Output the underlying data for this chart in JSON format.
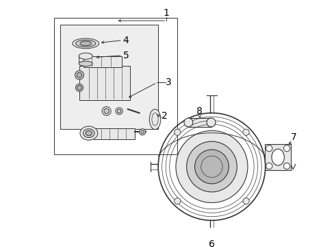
{
  "bg_color": "#ffffff",
  "line_color": "#333333",
  "fill_light": "#e8e8e8",
  "fill_mid": "#d0d0d0",
  "fill_dark": "#b8b8b8",
  "fill_box": "#eeeeee",
  "label_color": "#000000",
  "figsize": [
    4.89,
    3.6
  ],
  "dpi": 100,
  "label_fontsize": 10
}
